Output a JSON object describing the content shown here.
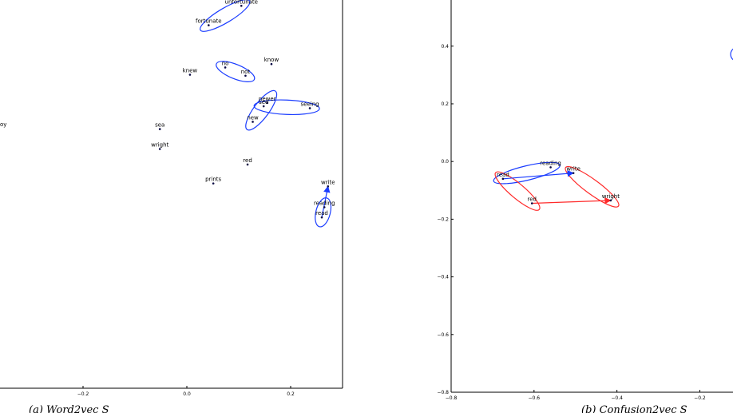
{
  "chart_data": [
    {
      "type": "scatter",
      "caption": "(a) Word2vec S",
      "x_ticks": [
        "−0.2",
        "0.0",
        "0.2"
      ],
      "x_tick_values": [
        -0.2,
        0.0,
        0.2
      ],
      "xlim": [
        -0.36,
        0.3
      ],
      "ylim": [
        -0.12,
        0.68
      ],
      "truncated_word": "oy",
      "points": [
        {
          "label": "unfortunate",
          "x": 0.105,
          "y": 0.668
        },
        {
          "label": "fortunate",
          "x": 0.042,
          "y": 0.628
        },
        {
          "label": "know",
          "x": 0.163,
          "y": 0.548
        },
        {
          "label": "knew",
          "x": 0.006,
          "y": 0.526
        },
        {
          "label": "no",
          "x": 0.074,
          "y": 0.541
        },
        {
          "label": "not",
          "x": 0.113,
          "y": 0.524
        },
        {
          "label": "newer",
          "x": 0.155,
          "y": 0.468
        },
        {
          "label": "see",
          "x": 0.148,
          "y": 0.461
        },
        {
          "label": "seeing",
          "x": 0.237,
          "y": 0.457
        },
        {
          "label": "new",
          "x": 0.127,
          "y": 0.429
        },
        {
          "label": "sea",
          "x": -0.052,
          "y": 0.414
        },
        {
          "label": "wright",
          "x": -0.052,
          "y": 0.373
        },
        {
          "label": "red",
          "x": 0.117,
          "y": 0.341
        },
        {
          "label": "prints",
          "x": 0.051,
          "y": 0.302
        },
        {
          "label": "write",
          "x": 0.272,
          "y": 0.296
        },
        {
          "label": "reading",
          "x": 0.265,
          "y": 0.253
        },
        {
          "label": "read",
          "x": 0.26,
          "y": 0.232
        }
      ],
      "clusters": [
        [
          "unfortunate",
          "fortunate"
        ],
        [
          "no",
          "not"
        ],
        [
          "newer",
          "see",
          "new"
        ],
        [
          "see",
          "seeing"
        ],
        [
          "reading",
          "read"
        ]
      ],
      "arrows": [
        {
          "from": "read",
          "to": "write",
          "color": "#1a3cff"
        }
      ]
    },
    {
      "type": "scatter",
      "caption": "(b) Confusion2vec S",
      "x_ticks": [
        "−0.8",
        "−0.6",
        "−0.4",
        "−0.2"
      ],
      "x_tick_values": [
        -0.8,
        -0.6,
        -0.4,
        -0.2
      ],
      "y_ticks": [
        "0.4",
        "0.2",
        "0.0",
        "−0.2",
        "−0.4",
        "−0.6",
        "−0.8"
      ],
      "y_tick_values": [
        0.4,
        0.2,
        0.0,
        -0.2,
        -0.4,
        -0.6,
        -0.8
      ],
      "xlim": [
        -0.8,
        -0.12
      ],
      "ylim": [
        -0.8,
        0.56
      ],
      "points": [
        {
          "label": "reading",
          "x": -0.56,
          "y": -0.02
        },
        {
          "label": "read",
          "x": -0.675,
          "y": -0.06
        },
        {
          "label": "write",
          "x": -0.505,
          "y": -0.04
        },
        {
          "label": "red",
          "x": -0.605,
          "y": -0.145
        },
        {
          "label": "wright",
          "x": -0.415,
          "y": -0.135
        }
      ],
      "clusters_blue": [
        [
          "read",
          "reading"
        ]
      ],
      "clusters_red": [
        [
          "read",
          "red"
        ],
        [
          "write",
          "wright"
        ]
      ],
      "arrows": [
        {
          "from": "read",
          "to": "write",
          "color": "#1a3cff"
        },
        {
          "from": "red",
          "to": "wright",
          "color": "#ff2a2a"
        }
      ]
    }
  ],
  "colors": {
    "blue": "#1a3cff",
    "red": "#ff2a2a",
    "point": "#0b0b44"
  }
}
